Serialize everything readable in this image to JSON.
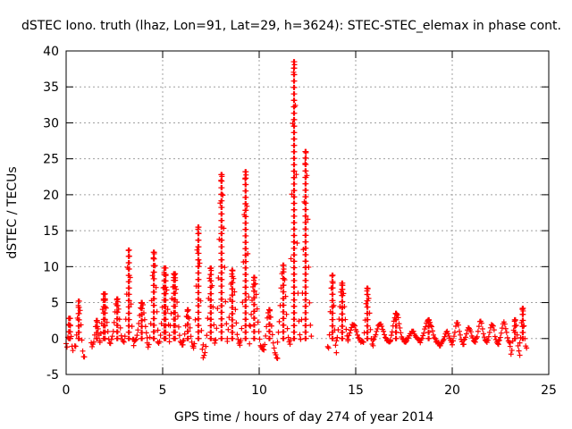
{
  "chart_data": {
    "type": "scatter",
    "title": "dSTEC Iono. truth (lhaz, Lon=91, Lat=29, h=3624): STEC-STEC_elemax in phase cont.",
    "xlabel": "GPS time / hours of day 274 of year 2014",
    "ylabel": "dSTEC  / TECUs",
    "xlim": [
      0,
      25
    ],
    "ylim": [
      -5,
      40
    ],
    "xticks": [
      0,
      5,
      10,
      15,
      20,
      25
    ],
    "yticks": [
      -5,
      0,
      5,
      10,
      15,
      20,
      25,
      30,
      35,
      40
    ],
    "grid": true,
    "marker": "+",
    "color": "#ff0000",
    "segments": [
      {
        "t0": 0.0,
        "t1": 0.35,
        "min": -1.8,
        "max": 2.8
      },
      {
        "t0": 0.45,
        "t1": 0.95,
        "min": -2.8,
        "max": 5.2
      },
      {
        "t0": 1.3,
        "t1": 1.75,
        "min": -1.2,
        "max": 2.5
      },
      {
        "t0": 1.75,
        "t1": 2.3,
        "min": -0.8,
        "max": 6.2
      },
      {
        "t0": 2.35,
        "t1": 2.95,
        "min": -0.5,
        "max": 5.5
      },
      {
        "t0": 3.0,
        "t1": 3.5,
        "min": -1.5,
        "max": 12.3
      },
      {
        "t0": 3.5,
        "t1": 4.2,
        "min": -0.5,
        "max": 5.0
      },
      {
        "t0": 4.2,
        "t1": 4.75,
        "min": -1.5,
        "max": 12.0
      },
      {
        "t0": 4.75,
        "t1": 5.35,
        "min": -1.0,
        "max": 9.8
      },
      {
        "t0": 5.35,
        "t1": 6.05,
        "min": -1.0,
        "max": 9.0
      },
      {
        "t0": 6.05,
        "t1": 6.6,
        "min": -1.2,
        "max": 4.0
      },
      {
        "t0": 6.6,
        "t1": 7.1,
        "min": -3.2,
        "max": 15.5
      },
      {
        "t0": 7.1,
        "t1": 7.7,
        "min": -2.5,
        "max": 9.8
      },
      {
        "t0": 7.7,
        "t1": 8.35,
        "min": -1.5,
        "max": 22.8
      },
      {
        "t0": 8.35,
        "t1": 9.0,
        "min": -1.0,
        "max": 9.5
      },
      {
        "t0": 9.0,
        "t1": 9.5,
        "min": -1.0,
        "max": 23.2
      },
      {
        "t0": 9.5,
        "t1": 10.2,
        "min": -1.5,
        "max": 8.5
      },
      {
        "t0": 10.2,
        "t1": 10.95,
        "min": -2.8,
        "max": 4.0
      },
      {
        "t0": 10.95,
        "t1": 11.6,
        "min": -1.0,
        "max": 10.2
      },
      {
        "t0": 11.6,
        "t1": 12.15,
        "min": -0.5,
        "max": 38.5
      },
      {
        "t0": 12.15,
        "t1": 12.7,
        "min": -0.5,
        "max": 26.0
      },
      {
        "t0": 13.55,
        "t1": 14.0,
        "min": -2.5,
        "max": 8.8
      },
      {
        "t0": 14.0,
        "t1": 14.6,
        "min": -0.5,
        "max": 7.7
      },
      {
        "t0": 14.6,
        "t1": 15.4,
        "min": -0.5,
        "max": 2.0
      },
      {
        "t0": 15.4,
        "t1": 15.9,
        "min": -1.0,
        "max": 7.0
      },
      {
        "t0": 15.9,
        "t1": 16.8,
        "min": -0.5,
        "max": 2.0
      },
      {
        "t0": 16.8,
        "t1": 17.6,
        "min": -0.5,
        "max": 3.5
      },
      {
        "t0": 17.6,
        "t1": 18.3,
        "min": -0.3,
        "max": 1.0
      },
      {
        "t0": 18.3,
        "t1": 19.3,
        "min": -0.8,
        "max": 2.6
      },
      {
        "t0": 19.3,
        "t1": 20.0,
        "min": -1.0,
        "max": 1.0
      },
      {
        "t0": 20.0,
        "t1": 20.6,
        "min": -0.8,
        "max": 2.2
      },
      {
        "t0": 20.6,
        "t1": 21.2,
        "min": -0.5,
        "max": 1.5
      },
      {
        "t0": 21.2,
        "t1": 21.8,
        "min": -0.6,
        "max": 2.4
      },
      {
        "t0": 21.8,
        "t1": 22.4,
        "min": -0.8,
        "max": 2.0
      },
      {
        "t0": 22.4,
        "t1": 23.0,
        "min": -0.6,
        "max": 2.3
      },
      {
        "t0": 23.0,
        "t1": 23.5,
        "min": -2.6,
        "max": 2.6
      },
      {
        "t0": 23.5,
        "t1": 23.85,
        "min": -1.5,
        "max": 4.2
      }
    ]
  }
}
